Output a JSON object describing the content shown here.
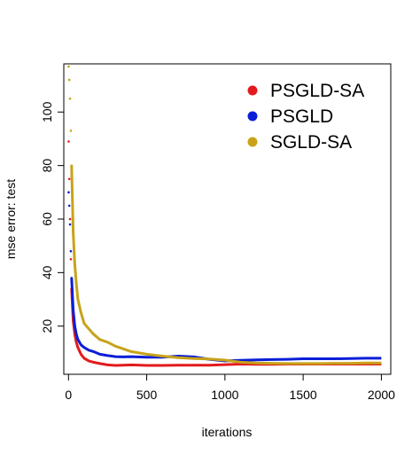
{
  "chart_data": {
    "type": "line",
    "title": "",
    "xlabel": "iterations",
    "ylabel": "mse error: test",
    "xlim": [
      -30,
      2060
    ],
    "ylim": [
      2.0,
      118.0
    ],
    "xticks": [
      0,
      500,
      1000,
      1500,
      2000
    ],
    "yticks": [
      20,
      40,
      60,
      80,
      100
    ],
    "xtick_labels": [
      "0",
      "500",
      "1000",
      "1500",
      "2000"
    ],
    "ytick_labels": [
      "20",
      "40",
      "60",
      "80",
      "100"
    ],
    "grid": false,
    "legend_position": "top-right",
    "series": [
      {
        "name": "PSGLD-SA",
        "color": "#e31a1c",
        "x": [
          1,
          5,
          10,
          15,
          20,
          30,
          40,
          50,
          60,
          80,
          100,
          130,
          160,
          200,
          250,
          300,
          350,
          400,
          500,
          600,
          700,
          800,
          900,
          1000,
          1100,
          1200,
          1300,
          1400,
          1500,
          1600,
          1700,
          1800,
          1900,
          2000
        ],
        "y": [
          89,
          75,
          60,
          45,
          34,
          22,
          17,
          14,
          12,
          9.5,
          8,
          7,
          6.5,
          6,
          5.5,
          5.3,
          5.4,
          5.5,
          5.3,
          5.3,
          5.4,
          5.4,
          5.4,
          5.6,
          5.8,
          5.7,
          5.7,
          5.8,
          5.8,
          5.8,
          5.8,
          5.8,
          5.8,
          5.8
        ]
      },
      {
        "name": "PSGLD",
        "color": "#0a1ed8",
        "x": [
          1,
          5,
          10,
          15,
          20,
          30,
          40,
          50,
          60,
          80,
          100,
          130,
          160,
          200,
          250,
          300,
          350,
          400,
          500,
          600,
          700,
          800,
          900,
          1000,
          1100,
          1200,
          1300,
          1400,
          1500,
          1600,
          1700,
          1800,
          1900,
          2000
        ],
        "y": [
          70,
          65,
          58,
          48,
          38,
          26,
          20,
          17,
          15,
          13,
          12,
          11,
          10.5,
          9.5,
          9,
          8.6,
          8.5,
          8.6,
          8.4,
          8.4,
          8.8,
          8.5,
          7.6,
          7,
          7.2,
          7.4,
          7.5,
          7.6,
          7.8,
          7.8,
          7.8,
          7.9,
          8,
          8
        ]
      },
      {
        "name": "SGLD-SA",
        "color": "#c8a31a",
        "x": [
          1,
          5,
          10,
          15,
          20,
          30,
          40,
          50,
          60,
          80,
          100,
          130,
          160,
          200,
          250,
          300,
          350,
          400,
          500,
          600,
          700,
          800,
          900,
          1000,
          1100,
          1200,
          1300,
          1400,
          1500,
          1600,
          1700,
          1800,
          1900,
          2000
        ],
        "y": [
          117,
          112,
          105,
          93,
          80,
          55,
          43,
          36,
          30,
          25,
          21,
          19,
          17,
          15,
          14,
          12.5,
          11.5,
          10.5,
          9.5,
          8.8,
          8.2,
          7.9,
          7.7,
          7.3,
          6.5,
          6.2,
          6.1,
          6,
          6,
          6,
          6.1,
          6.1,
          6.2,
          6.2
        ]
      }
    ]
  }
}
